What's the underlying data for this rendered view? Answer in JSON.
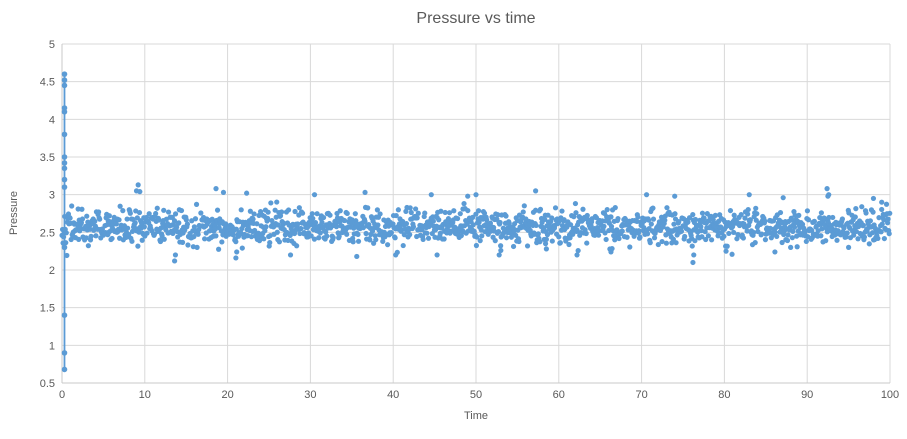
{
  "window": {
    "background_color": "#ffffff"
  },
  "chart_data": {
    "type": "scatter",
    "title": "Pressure vs time",
    "xlabel": "Time",
    "ylabel": "Pressure",
    "xlim": [
      0,
      100
    ],
    "ylim": [
      0.5,
      5
    ],
    "grid": true,
    "legend": false,
    "xtick_values": [
      0,
      10,
      20,
      30,
      40,
      50,
      60,
      70,
      80,
      90,
      100
    ],
    "xtick_labels": [
      "0",
      "10",
      "20",
      "30",
      "40",
      "50",
      "60",
      "70",
      "80",
      "90",
      "100"
    ],
    "ytick_values": [
      0.5,
      1,
      1.5,
      2,
      2.5,
      3,
      3.5,
      4,
      4.5,
      5
    ],
    "ytick_labels": [
      "0.5",
      "1",
      "1.5",
      "2",
      "2.5",
      "3",
      "3.5",
      "4",
      "4.5",
      "5"
    ],
    "colors": {
      "marker": "#5B9BD5",
      "gridline": "#D9D9D9",
      "axis_line": "#C9C9C9",
      "text": "#595959"
    },
    "series": [
      {
        "name": "Pressure",
        "marker_radius": 2.6,
        "noise_band": {
          "t_start": 0,
          "t_end": 100,
          "dt": 0.065,
          "mean": 2.57,
          "sigma": 0.115,
          "clip_min": 2.08,
          "clip_max": 3.12,
          "seed": 42
        },
        "startup_transient": {
          "t": 0.3,
          "line_from": 0.68,
          "line_to": 4.6,
          "line_width": 1.8,
          "values": [
            4.6,
            4.52,
            4.45,
            4.15,
            4.1,
            3.8,
            3.5,
            3.42,
            3.35,
            3.2,
            3.1,
            2.3,
            1.4,
            0.9,
            0.68
          ]
        },
        "notable_points": [
          [
            9.0,
            3.05
          ],
          [
            9.2,
            3.13
          ],
          [
            9.4,
            3.04
          ],
          [
            13.6,
            2.12
          ],
          [
            13.7,
            2.2
          ],
          [
            18.6,
            3.08
          ],
          [
            19.5,
            3.03
          ],
          [
            21.0,
            2.16
          ],
          [
            21.1,
            2.24
          ],
          [
            22.3,
            3.02
          ],
          [
            27.6,
            2.2
          ],
          [
            30.5,
            3.0
          ],
          [
            35.6,
            2.18
          ],
          [
            36.6,
            3.03
          ],
          [
            40.3,
            2.2
          ],
          [
            44.6,
            3.0
          ],
          [
            45.3,
            2.2
          ],
          [
            49.0,
            2.98
          ],
          [
            50.0,
            3.0
          ],
          [
            52.8,
            2.2
          ],
          [
            53.0,
            2.26
          ],
          [
            57.2,
            3.05
          ],
          [
            58.4,
            2.35
          ],
          [
            58.5,
            2.28
          ],
          [
            62.2,
            2.2
          ],
          [
            66.3,
            2.24
          ],
          [
            70.6,
            3.0
          ],
          [
            74.0,
            2.98
          ],
          [
            76.2,
            2.1
          ],
          [
            76.3,
            2.2
          ],
          [
            80.2,
            2.25
          ],
          [
            83.0,
            3.0
          ],
          [
            86.1,
            2.24
          ],
          [
            88.0,
            2.3
          ],
          [
            92.4,
            3.08
          ],
          [
            92.5,
            2.98
          ],
          [
            92.6,
            3.0
          ],
          [
            95.0,
            2.3
          ],
          [
            98.0,
            2.95
          ],
          [
            99.0,
            2.9
          ]
        ]
      }
    ]
  }
}
